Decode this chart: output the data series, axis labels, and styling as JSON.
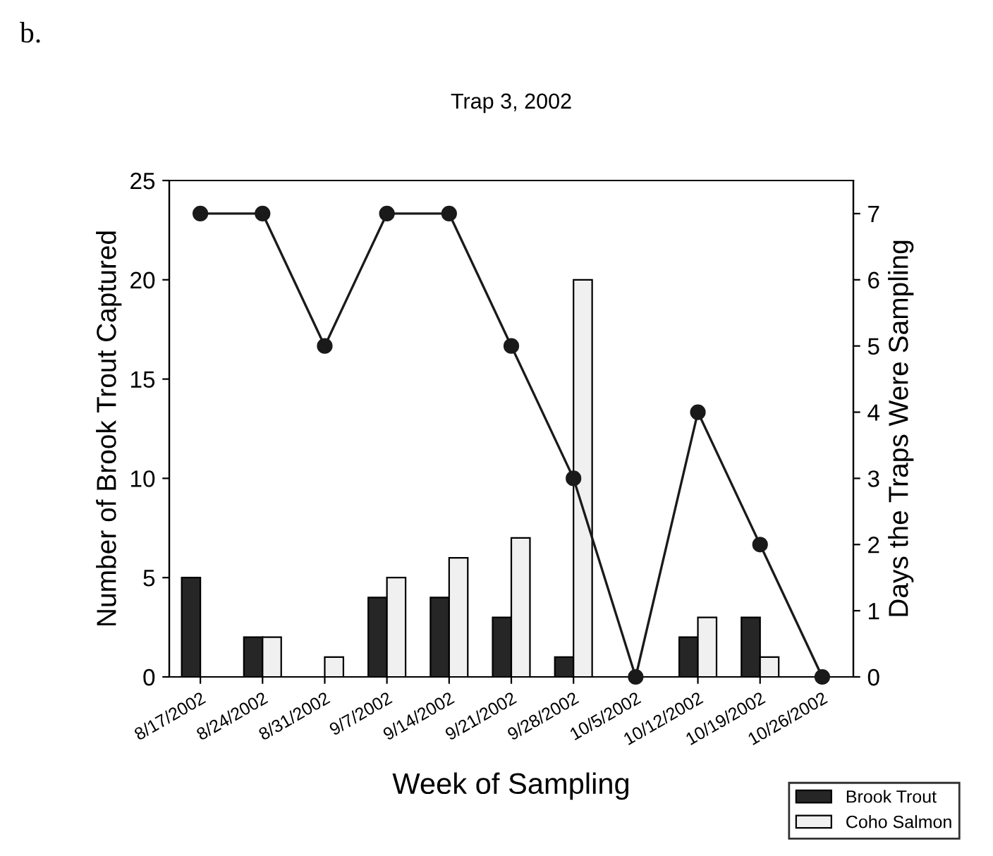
{
  "chart_data": {
    "type": "bar",
    "title": "Trap 3, 2002",
    "xlabel": "Week of Sampling",
    "ylabel": "Number of Brook Trout Captured",
    "y2label": "Days the Traps Were Sampling",
    "annotations": [
      "b."
    ],
    "categories": [
      "8/17/2002",
      "8/24/2002",
      "8/31/2002",
      "9/7/2002",
      "9/14/2002",
      "9/21/2002",
      "9/28/2002",
      "10/5/2002",
      "10/12/2002",
      "10/19/2002",
      "10/26/2002"
    ],
    "series": [
      {
        "name": "Brook Trout",
        "color": "#262626",
        "values": [
          5,
          2,
          0,
          4,
          4,
          3,
          1,
          0,
          2,
          3,
          0
        ]
      },
      {
        "name": "Coho Salmon",
        "color": "#f0f0f0",
        "values": [
          0,
          2,
          1,
          5,
          6,
          7,
          20,
          0,
          3,
          1,
          0
        ]
      },
      {
        "type": "line",
        "axis": "y2",
        "color": "#1a1a1a",
        "marker": "circle",
        "values": [
          7,
          7,
          5,
          7,
          7,
          5,
          3,
          0,
          4,
          2,
          0
        ]
      }
    ],
    "ylim": [
      0,
      25
    ],
    "yticks": [
      0,
      5,
      10,
      15,
      20,
      25
    ],
    "y2lim": [
      0,
      7.5
    ],
    "y2ticks": [
      0,
      1,
      2,
      3,
      4,
      5,
      6,
      7
    ],
    "legend": "bottom right",
    "grid": false
  }
}
